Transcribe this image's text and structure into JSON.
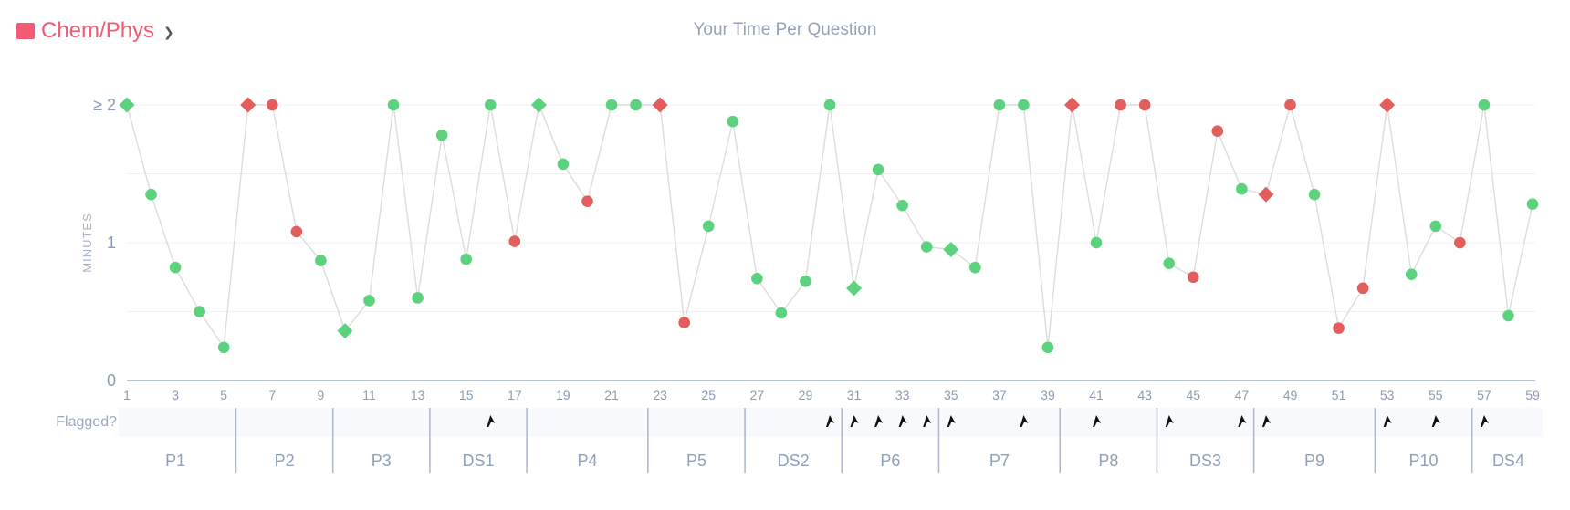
{
  "header": {
    "subject_label": "Chem/Phys",
    "chevron": "chevron-down-icon",
    "title": "Your Time Per Question"
  },
  "colors": {
    "correct": "#5dd27e",
    "incorrect": "#e35d5d",
    "subject_swatch": "#f25b72",
    "line": "#dcdcdc",
    "axis_text": "#8a9bb5"
  },
  "chart_data": {
    "type": "scatter",
    "title": "Your Time Per Question",
    "ylabel": "MINUTES",
    "xlabel": "",
    "ylim": [
      0,
      2
    ],
    "y_ticks": [
      "0",
      "1",
      "≥ 2"
    ],
    "x_ticks": [
      1,
      3,
      5,
      7,
      9,
      11,
      13,
      15,
      17,
      19,
      21,
      23,
      25,
      27,
      29,
      31,
      33,
      35,
      37,
      39,
      41,
      43,
      45,
      47,
      49,
      51,
      53,
      55,
      57,
      59
    ],
    "x": [
      1,
      2,
      3,
      4,
      5,
      6,
      7,
      8,
      9,
      10,
      11,
      12,
      13,
      14,
      15,
      16,
      17,
      18,
      19,
      20,
      21,
      22,
      23,
      24,
      25,
      26,
      27,
      28,
      29,
      30,
      31,
      32,
      33,
      34,
      35,
      36,
      37,
      38,
      39,
      40,
      41,
      42,
      43,
      44,
      45,
      46,
      47,
      48,
      49,
      50,
      51,
      52,
      53,
      54,
      55,
      56,
      57,
      58,
      59
    ],
    "y": [
      2.0,
      1.35,
      0.82,
      0.5,
      0.24,
      2.0,
      2.0,
      1.08,
      0.87,
      0.36,
      0.58,
      2.0,
      0.6,
      1.78,
      0.88,
      2.0,
      1.01,
      2.0,
      1.57,
      1.3,
      2.0,
      2.0,
      2.0,
      0.42,
      1.12,
      1.88,
      0.74,
      0.49,
      0.72,
      2.0,
      0.67,
      1.53,
      1.27,
      0.97,
      0.95,
      0.82,
      2.0,
      2.0,
      0.24,
      2.0,
      1.0,
      2.0,
      2.0,
      0.85,
      0.75,
      1.81,
      1.39,
      1.35,
      2.0,
      1.35,
      0.38,
      0.67,
      2.0,
      0.77,
      1.12,
      1.0,
      2.0,
      0.47,
      1.28
    ],
    "result": [
      "correct",
      "correct",
      "correct",
      "correct",
      "correct",
      "incorrect",
      "incorrect",
      "incorrect",
      "correct",
      "correct",
      "correct",
      "correct",
      "correct",
      "correct",
      "correct",
      "correct",
      "incorrect",
      "correct",
      "correct",
      "incorrect",
      "correct",
      "correct",
      "incorrect",
      "incorrect",
      "correct",
      "correct",
      "correct",
      "correct",
      "correct",
      "correct",
      "correct",
      "correct",
      "correct",
      "correct",
      "correct",
      "correct",
      "correct",
      "correct",
      "correct",
      "incorrect",
      "correct",
      "incorrect",
      "incorrect",
      "correct",
      "incorrect",
      "incorrect",
      "correct",
      "incorrect",
      "incorrect",
      "correct",
      "incorrect",
      "incorrect",
      "incorrect",
      "correct",
      "correct",
      "incorrect",
      "correct",
      "correct",
      "correct"
    ],
    "marker": [
      "diamond",
      "circle",
      "circle",
      "circle",
      "circle",
      "diamond",
      "circle",
      "circle",
      "circle",
      "diamond",
      "circle",
      "circle",
      "circle",
      "circle",
      "circle",
      "circle",
      "circle",
      "diamond",
      "circle",
      "circle",
      "circle",
      "circle",
      "diamond",
      "circle",
      "circle",
      "circle",
      "circle",
      "circle",
      "circle",
      "circle",
      "diamond",
      "circle",
      "circle",
      "circle",
      "diamond",
      "circle",
      "circle",
      "circle",
      "circle",
      "diamond",
      "circle",
      "circle",
      "circle",
      "circle",
      "circle",
      "circle",
      "circle",
      "diamond",
      "circle",
      "circle",
      "circle",
      "circle",
      "diamond",
      "circle",
      "circle",
      "circle",
      "circle",
      "circle",
      "circle"
    ],
    "flagged_label": "Flagged?",
    "flagged_icon": "flag-icon",
    "flagged_questions": [
      16,
      30,
      31,
      32,
      33,
      34,
      35,
      38,
      41,
      44,
      47,
      48,
      53,
      55,
      57
    ],
    "passages": [
      {
        "label": "P1",
        "start": 1,
        "end": 5
      },
      {
        "label": "P2",
        "start": 6,
        "end": 9
      },
      {
        "label": "P3",
        "start": 10,
        "end": 13
      },
      {
        "label": "DS1",
        "start": 14,
        "end": 17
      },
      {
        "label": "P4",
        "start": 18,
        "end": 22
      },
      {
        "label": "P5",
        "start": 23,
        "end": 26
      },
      {
        "label": "DS2",
        "start": 27,
        "end": 30
      },
      {
        "label": "P6",
        "start": 31,
        "end": 34
      },
      {
        "label": "P7",
        "start": 35,
        "end": 39
      },
      {
        "label": "P8",
        "start": 40,
        "end": 43
      },
      {
        "label": "DS3",
        "start": 44,
        "end": 47
      },
      {
        "label": "P9",
        "start": 48,
        "end": 52
      },
      {
        "label": "P10",
        "start": 53,
        "end": 56
      },
      {
        "label": "DS4",
        "start": 57,
        "end": 59
      }
    ],
    "grid": true
  }
}
